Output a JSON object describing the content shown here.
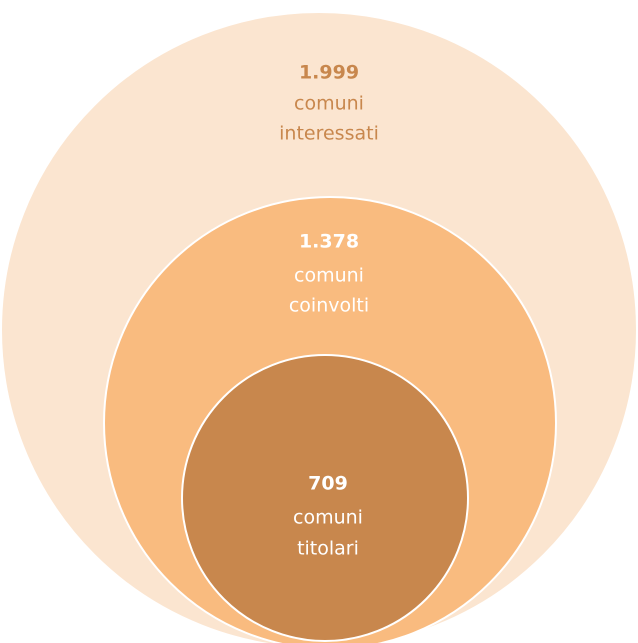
{
  "circles": [
    {
      "value": "1.999",
      "lines": [
        "comuni",
        "interessati"
      ]
    },
    {
      "value": "1.378",
      "lines": [
        "comuni",
        "coinvolti"
      ]
    },
    {
      "value": "709",
      "lines": [
        "comuni",
        "titolari"
      ]
    }
  ]
}
